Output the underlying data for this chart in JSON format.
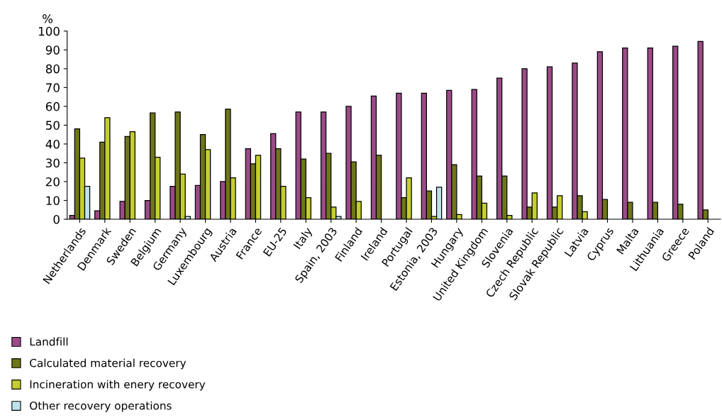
{
  "chart_data": {
    "type": "bar",
    "ylabel": "%",
    "categories": [
      "Netherlands",
      "Denmark",
      "Sweden",
      "Belgium",
      "Germany",
      "Luxembourg",
      "Austria",
      "France",
      "EU-25",
      "Italy",
      "Spain, 2003",
      "Finland",
      "Ireland",
      "Portugal",
      "Estonia, 2003",
      "Hungary",
      "United Kingdom",
      "Slovenia",
      "Czech Republic",
      "Slovak Republic",
      "Latvia",
      "Cyprus",
      "Malta",
      "Lithuania",
      "Greece",
      "Poland"
    ],
    "series": [
      {
        "name": "Landfill",
        "color": "#9b4a87",
        "values": [
          2,
          4.5,
          9.5,
          10,
          17.5,
          18,
          20,
          37.5,
          45.5,
          57,
          57,
          60,
          65.5,
          67,
          67,
          68.5,
          69,
          75,
          80,
          81,
          83,
          89,
          91,
          91,
          92,
          94.5
        ]
      },
      {
        "name": "Calculated material recovery",
        "color": "#6e7619",
        "values": [
          48,
          41,
          44,
          56.5,
          57,
          45,
          58.5,
          29.5,
          37.5,
          32,
          35,
          30.5,
          34,
          11.5,
          15,
          29,
          23,
          23,
          6.5,
          6.5,
          12.5,
          10.5,
          9,
          9,
          8,
          5
        ]
      },
      {
        "name": "Incineration with enery recovery",
        "color": "#c4cf2f",
        "values": [
          32.5,
          54,
          46.5,
          33,
          24,
          37,
          22,
          34,
          17.5,
          11.5,
          6.5,
          9.5,
          null,
          22,
          1.5,
          2.5,
          8.5,
          2,
          14,
          12.5,
          4,
          null,
          null,
          null,
          null,
          null
        ]
      },
      {
        "name": "Other recovery operations",
        "color": "#bfe3ea",
        "values": [
          17.5,
          null,
          null,
          null,
          1.5,
          null,
          null,
          null,
          null,
          null,
          1.5,
          null,
          null,
          null,
          17,
          null,
          null,
          null,
          null,
          null,
          null,
          null,
          null,
          null,
          null,
          null
        ]
      }
    ],
    "ylim": [
      0,
      100
    ],
    "yticks": [
      0,
      10,
      20,
      30,
      40,
      50,
      60,
      70,
      80,
      90,
      100
    ],
    "grid": false,
    "legend": "bottom left"
  }
}
